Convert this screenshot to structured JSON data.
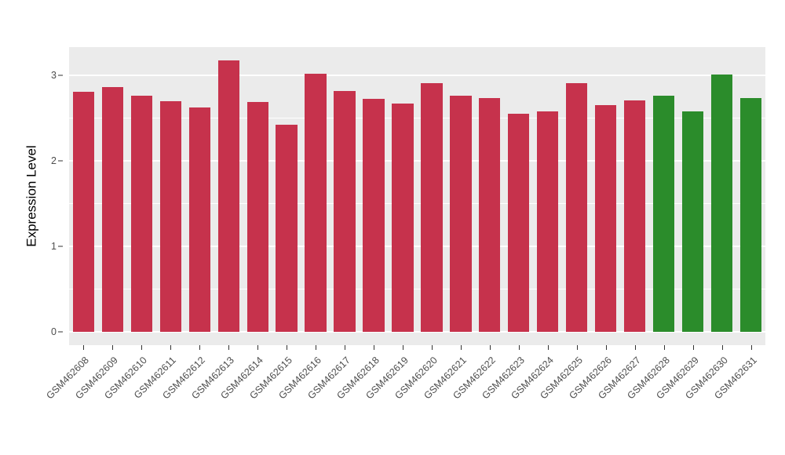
{
  "figure": {
    "background": "#ffffff",
    "panel_background": "#EBEBEB",
    "grid_color": "#ffffff",
    "tick_text_color": "#4d4d4d"
  },
  "chart_data": {
    "type": "bar",
    "title": "",
    "xlabel": "",
    "ylabel": "Expression Level",
    "ylim": [
      -0.16,
      3.33
    ],
    "yticks": [
      0,
      1,
      2,
      3
    ],
    "yticks_minor": [
      0.5,
      1.5,
      2.5
    ],
    "grid": true,
    "legend_position": "none",
    "categories": [
      "GSM462608",
      "GSM462609",
      "GSM462610",
      "GSM462611",
      "GSM462612",
      "GSM462613",
      "GSM462614",
      "GSM462615",
      "GSM462616",
      "GSM462617",
      "GSM462618",
      "GSM462619",
      "GSM462620",
      "GSM462621",
      "GSM462622",
      "GSM462623",
      "GSM462624",
      "GSM462625",
      "GSM462626",
      "GSM462627",
      "GSM462628",
      "GSM462629",
      "GSM462630",
      "GSM462631"
    ],
    "values": [
      2.81,
      2.86,
      2.76,
      2.7,
      2.62,
      3.17,
      2.69,
      2.42,
      3.02,
      2.82,
      2.72,
      2.67,
      2.91,
      2.76,
      2.73,
      2.55,
      2.58,
      2.91,
      2.65,
      2.71,
      2.76,
      2.58,
      3.01,
      2.73
    ],
    "groups": [
      "crimson",
      "crimson",
      "crimson",
      "crimson",
      "crimson",
      "crimson",
      "crimson",
      "crimson",
      "crimson",
      "crimson",
      "crimson",
      "crimson",
      "crimson",
      "crimson",
      "crimson",
      "crimson",
      "crimson",
      "crimson",
      "crimson",
      "crimson",
      "green",
      "green",
      "green",
      "green"
    ],
    "group_colors": {
      "crimson": "#C6324C",
      "green": "#2B8C2B"
    }
  }
}
